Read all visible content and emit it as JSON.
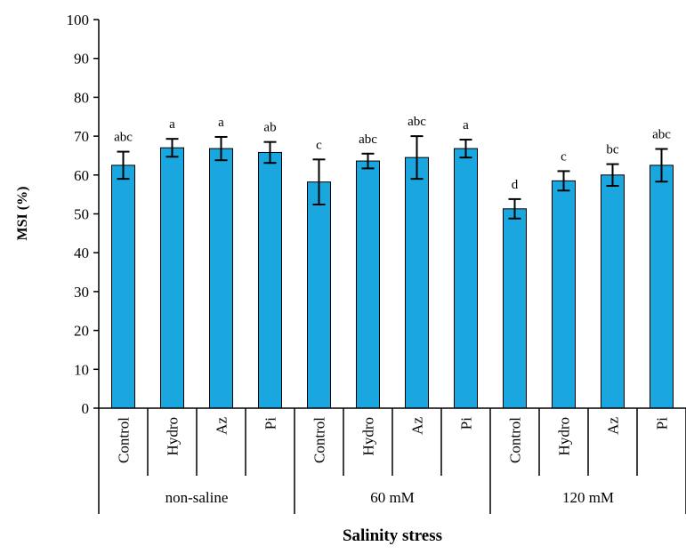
{
  "chart_data": {
    "type": "bar",
    "title": "",
    "ylabel": "MSI (%)",
    "xlabel": "Salinity stress",
    "ylim": [
      0,
      100
    ],
    "yticks": [
      0,
      10,
      20,
      30,
      40,
      50,
      60,
      70,
      80,
      90,
      100
    ],
    "grid": false,
    "bar_color": "#1aa7e0",
    "groups": [
      {
        "name": "non-saline",
        "categories": [
          "Control",
          "Hydro",
          "Az",
          "Pi"
        ],
        "values": [
          62.5,
          67,
          66.8,
          65.8
        ],
        "errors": [
          3.5,
          2.3,
          3.0,
          2.7
        ],
        "letters": [
          "abc",
          "a",
          "a",
          "ab"
        ]
      },
      {
        "name": "60 mM",
        "categories": [
          "Control",
          "Hydro",
          "Az",
          "Pi"
        ],
        "values": [
          58.2,
          63.6,
          64.5,
          66.8
        ],
        "errors": [
          5.8,
          1.9,
          5.5,
          2.3
        ],
        "letters": [
          "c",
          "abc",
          "abc",
          "a"
        ]
      },
      {
        "name": "120 mM",
        "categories": [
          "Control",
          "Hydro",
          "Az",
          "Pi"
        ],
        "values": [
          51.3,
          58.5,
          60,
          62.5
        ],
        "errors": [
          2.5,
          2.5,
          2.8,
          4.2
        ],
        "letters": [
          "d",
          "c",
          "bc",
          "abc"
        ]
      }
    ]
  }
}
